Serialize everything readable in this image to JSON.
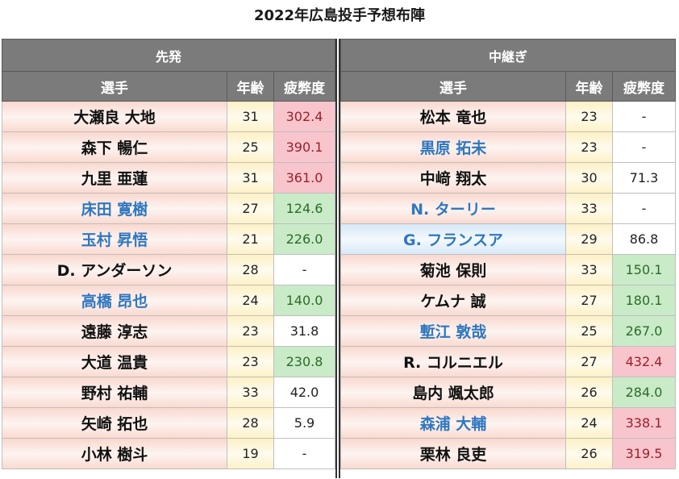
{
  "title": "2022年広島投手予想布陣",
  "colors": {
    "header_bg": "#7b7b7b",
    "name_blue_text": "#2f77c0",
    "fatigue_high": "#f8c5cc",
    "fatigue_low": "#c9ebc8"
  },
  "left": {
    "section": "先発",
    "headers": {
      "name": "選手",
      "age": "年齢",
      "fatigue": "疲弊度"
    },
    "rows": [
      {
        "name": "大瀬良 大地",
        "age": "31",
        "fatigue": "302.4",
        "name_color": "black",
        "fatigue_level": "red"
      },
      {
        "name": "森下 暢仁",
        "age": "25",
        "fatigue": "390.1",
        "name_color": "black",
        "fatigue_level": "red"
      },
      {
        "name": "九里 亜蓮",
        "age": "31",
        "fatigue": "361.0",
        "name_color": "black",
        "fatigue_level": "red"
      },
      {
        "name": "床田 寛樹",
        "age": "27",
        "fatigue": "124.6",
        "name_color": "blue",
        "fatigue_level": "green"
      },
      {
        "name": "玉村 昇悟",
        "age": "21",
        "fatigue": "226.0",
        "name_color": "blue",
        "fatigue_level": "green"
      },
      {
        "name": "D. アンダーソン",
        "age": "28",
        "fatigue": "-",
        "name_color": "black",
        "fatigue_level": "white"
      },
      {
        "name": "高橋 昂也",
        "age": "24",
        "fatigue": "140.0",
        "name_color": "blue",
        "fatigue_level": "green"
      },
      {
        "name": "遠藤 淳志",
        "age": "23",
        "fatigue": "31.8",
        "name_color": "black",
        "fatigue_level": "white"
      },
      {
        "name": "大道 温貴",
        "age": "23",
        "fatigue": "230.8",
        "name_color": "black",
        "fatigue_level": "green"
      },
      {
        "name": "野村 祐輔",
        "age": "33",
        "fatigue": "42.0",
        "name_color": "black",
        "fatigue_level": "white"
      },
      {
        "name": "矢崎 拓也",
        "age": "28",
        "fatigue": "5.9",
        "name_color": "black",
        "fatigue_level": "white"
      },
      {
        "name": "小林 樹斗",
        "age": "19",
        "fatigue": "-",
        "name_color": "black",
        "fatigue_level": "white"
      }
    ]
  },
  "right": {
    "section": "中継ぎ",
    "headers": {
      "name": "選手",
      "age": "年齢",
      "fatigue": "疲弊度"
    },
    "rows": [
      {
        "name": "松本 竜也",
        "age": "23",
        "fatigue": "-",
        "name_color": "black",
        "fatigue_level": "white"
      },
      {
        "name": "黒原 拓未",
        "age": "23",
        "fatigue": "-",
        "name_color": "blue",
        "fatigue_level": "white"
      },
      {
        "name": "中﨑 翔太",
        "age": "30",
        "fatigue": "71.3",
        "name_color": "black",
        "fatigue_level": "white"
      },
      {
        "name": "N. ターリー",
        "age": "33",
        "fatigue": "-",
        "name_color": "blue",
        "fatigue_level": "white"
      },
      {
        "name": "G. フランスア",
        "age": "29",
        "fatigue": "86.8",
        "name_color": "blue",
        "name_bg": "blue",
        "fatigue_level": "white"
      },
      {
        "name": "菊池 保則",
        "age": "33",
        "fatigue": "150.1",
        "name_color": "black",
        "fatigue_level": "green"
      },
      {
        "name": "ケムナ 誠",
        "age": "27",
        "fatigue": "180.1",
        "name_color": "black",
        "fatigue_level": "green"
      },
      {
        "name": "塹江 敦哉",
        "age": "25",
        "fatigue": "267.0",
        "name_color": "blue",
        "fatigue_level": "green"
      },
      {
        "name": "R. コルニエル",
        "age": "27",
        "fatigue": "432.4",
        "name_color": "black",
        "fatigue_level": "red"
      },
      {
        "name": "島内 颯太郎",
        "age": "26",
        "fatigue": "284.0",
        "name_color": "black",
        "fatigue_level": "green"
      },
      {
        "name": "森浦 大輔",
        "age": "24",
        "fatigue": "338.1",
        "name_color": "blue",
        "fatigue_level": "red"
      },
      {
        "name": "栗林 良吏",
        "age": "26",
        "fatigue": "319.5",
        "name_color": "black",
        "fatigue_level": "red"
      }
    ]
  }
}
